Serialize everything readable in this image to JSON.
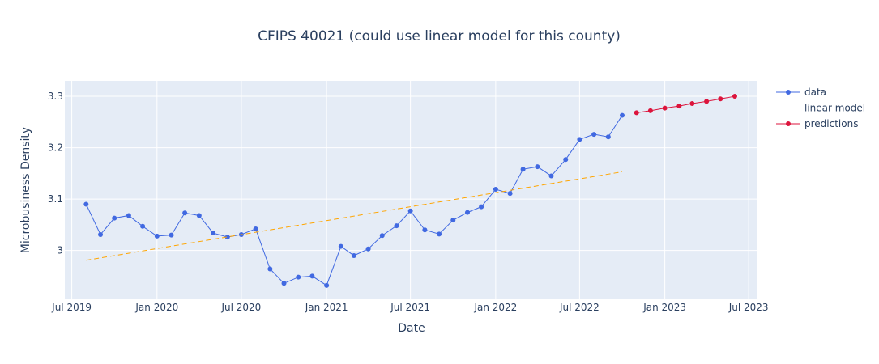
{
  "chart_data": {
    "type": "line",
    "title": "CFIPS 40021 (could use linear model for this county)",
    "xlabel": "Date",
    "ylabel": "Microbusiness Density",
    "xlim": [
      "2019-06-16",
      "2023-07-20"
    ],
    "ylim": [
      2.905,
      3.33
    ],
    "grid": true,
    "legend_position": "right",
    "x_ticks": [
      {
        "date": "2019-07-01",
        "label": "Jul 2019"
      },
      {
        "date": "2020-01-01",
        "label": "Jan 2020"
      },
      {
        "date": "2020-07-01",
        "label": "Jul 2020"
      },
      {
        "date": "2021-01-01",
        "label": "Jan 2021"
      },
      {
        "date": "2021-07-01",
        "label": "Jul 2021"
      },
      {
        "date": "2022-01-01",
        "label": "Jan 2022"
      },
      {
        "date": "2022-07-01",
        "label": "Jul 2022"
      },
      {
        "date": "2023-01-01",
        "label": "Jan 2023"
      },
      {
        "date": "2023-07-01",
        "label": "Jul 2023"
      }
    ],
    "y_ticks": [
      {
        "value": 3.0,
        "label": "3"
      },
      {
        "value": 3.1,
        "label": "3.1"
      },
      {
        "value": 3.2,
        "label": "3.2"
      },
      {
        "value": 3.3,
        "label": "3.3"
      }
    ],
    "series": [
      {
        "name": "data",
        "mode": "lines+markers",
        "color": "#4169e1",
        "x": [
          "2019-08-01",
          "2019-09-01",
          "2019-10-01",
          "2019-11-01",
          "2019-12-01",
          "2020-01-01",
          "2020-02-01",
          "2020-03-01",
          "2020-04-01",
          "2020-05-01",
          "2020-06-01",
          "2020-07-01",
          "2020-08-01",
          "2020-09-01",
          "2020-10-01",
          "2020-11-01",
          "2020-12-01",
          "2021-01-01",
          "2021-02-01",
          "2021-03-01",
          "2021-04-01",
          "2021-05-01",
          "2021-06-01",
          "2021-07-01",
          "2021-08-01",
          "2021-09-01",
          "2021-10-01",
          "2021-11-01",
          "2021-12-01",
          "2022-01-01",
          "2022-02-01",
          "2022-03-01",
          "2022-04-01",
          "2022-05-01",
          "2022-06-01",
          "2022-07-01",
          "2022-08-01",
          "2022-09-01",
          "2022-10-01"
        ],
        "y": [
          3.09,
          3.031,
          3.063,
          3.068,
          3.047,
          3.028,
          3.03,
          3.073,
          3.068,
          3.034,
          3.026,
          3.031,
          3.042,
          2.964,
          2.936,
          2.948,
          2.95,
          2.932,
          3.008,
          2.99,
          3.003,
          3.029,
          3.048,
          3.077,
          3.04,
          3.032,
          3.059,
          3.074,
          3.085,
          3.119,
          3.111,
          3.158,
          3.163,
          3.145,
          3.177,
          3.216,
          3.226,
          3.221,
          3.263
        ]
      },
      {
        "name": "linear model",
        "mode": "lines",
        "dash": "dash",
        "color": "#ffa500",
        "x": [
          "2019-08-01",
          "2022-10-01"
        ],
        "y": [
          2.981,
          3.153
        ]
      },
      {
        "name": "predictions",
        "mode": "lines+markers",
        "color": "#dc143c",
        "x": [
          "2022-11-01",
          "2022-12-01",
          "2023-01-01",
          "2023-02-01",
          "2023-03-01",
          "2023-04-01",
          "2023-05-01",
          "2023-06-01"
        ],
        "y": [
          3.268,
          3.272,
          3.277,
          3.281,
          3.286,
          3.29,
          3.295,
          3.3
        ]
      }
    ]
  }
}
